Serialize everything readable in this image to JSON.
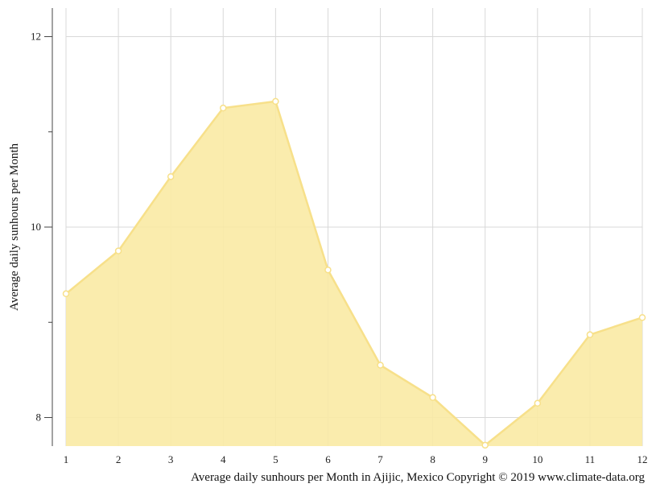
{
  "chart_data": {
    "type": "area",
    "title": "",
    "xlabel": "",
    "ylabel": "Average daily sunhours per Month",
    "x": [
      1,
      2,
      3,
      4,
      5,
      6,
      7,
      8,
      9,
      10,
      11,
      12
    ],
    "series": [
      {
        "values": [
          9.3,
          9.75,
          10.53,
          11.25,
          11.32,
          9.55,
          8.55,
          8.21,
          7.71,
          8.15,
          8.87,
          9.05
        ]
      }
    ],
    "xlim": [
      1,
      12
    ],
    "ylim": [
      7.7,
      12.3
    ],
    "yticks": [
      8,
      10,
      12
    ],
    "grid": true,
    "legend": "none",
    "colors": {
      "fill": "#faeaa4",
      "line": "#f7e08a",
      "marker_fill": "#ffffff",
      "grid": "#d8d8d8"
    }
  },
  "caption": "Average daily sunhours per Month in Ajijic, Mexico Copyright © 2019 www.climate-data.org"
}
